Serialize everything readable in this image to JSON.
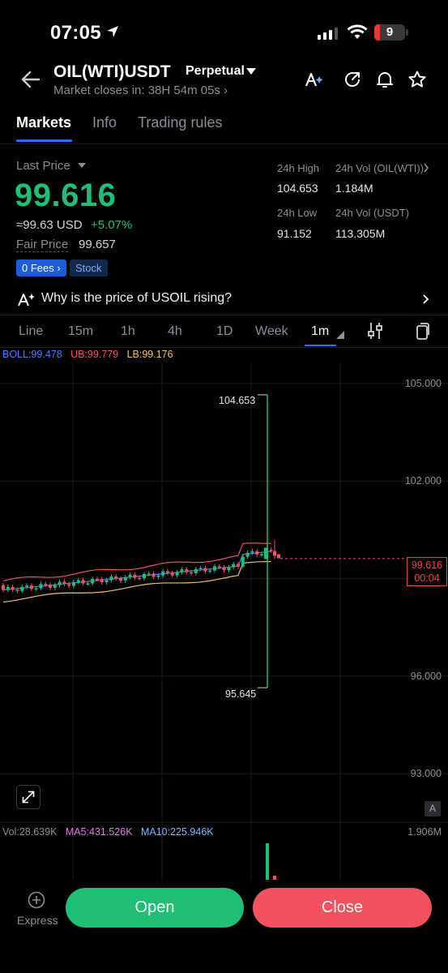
{
  "status_bar": {
    "time": "07:05",
    "battery": "9"
  },
  "header": {
    "symbol": "OIL(WTI)USDT",
    "contract_type": "Perpetual",
    "market_close": "Market closes in: 38H 54m 05s ›"
  },
  "tabs": [
    {
      "label": "Markets",
      "active": true
    },
    {
      "label": "Info",
      "active": false
    },
    {
      "label": "Trading rules",
      "active": false
    }
  ],
  "price_panel": {
    "last_price_label": "Last Price",
    "last_price": "99.616",
    "usd_equiv": "≈99.63 USD",
    "change": "+5.07%",
    "fair_price_label": "Fair Price",
    "fair_price": "99.657",
    "badges": {
      "fees": "0 Fees ›",
      "stock": "Stock"
    }
  },
  "stats": {
    "high_label": "24h High",
    "high": "104.653",
    "vol_base_label": "24h Vol (OIL(WTI))",
    "vol_base": "1.184M",
    "low_label": "24h Low",
    "low": "91.152",
    "vol_quote_label": "24h Vol  (USDT)",
    "vol_quote": "113.305M"
  },
  "news": {
    "text": "Why is the price of USOIL rising?"
  },
  "intervals": [
    {
      "label": "Line",
      "active": false
    },
    {
      "label": "15m",
      "active": false
    },
    {
      "label": "1h",
      "active": false
    },
    {
      "label": "4h",
      "active": false
    },
    {
      "label": "1D",
      "active": false
    },
    {
      "label": "Week",
      "active": false
    },
    {
      "label": "1m",
      "active": true
    }
  ],
  "indicators": {
    "boll": "BOLL:99.478",
    "ub": "UB:99.779",
    "lb": "LB:99.176"
  },
  "volume": {
    "vol": "Vol:28.639K",
    "ma5": "MA5:431.526K",
    "ma10": "MA10:225.946K",
    "max": "1.906M"
  },
  "chart_data": {
    "type": "candlestick",
    "y_ticks": [
      "105.000",
      "102.000",
      "96.000",
      "93.000"
    ],
    "ylim": [
      91.5,
      106.0
    ],
    "high_marker": "104.653",
    "low_marker": "95.645",
    "current_price": "99.616",
    "countdown": "00:04",
    "expand_button": "A"
  },
  "colors": {
    "up": "#1fbf75",
    "down": "#f2525f",
    "accent": "#2f6bff",
    "boll": "#4a7dff",
    "ub": "#f2525f",
    "lb": "#f3c26b"
  },
  "bottom_bar": {
    "express": "Express",
    "open": "Open",
    "close": "Close"
  }
}
